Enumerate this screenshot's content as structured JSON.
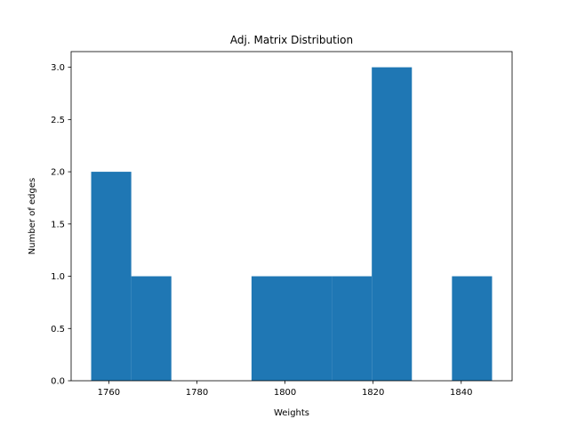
{
  "chart_data": {
    "type": "histogram",
    "title": "Adj. Matrix Distribution",
    "xlabel": "Weights",
    "ylabel": "Number of edges",
    "bins": [
      {
        "x0": 1756.0,
        "x1": 1765.1,
        "count": 2
      },
      {
        "x0": 1765.1,
        "x1": 1774.2,
        "count": 1
      },
      {
        "x0": 1774.2,
        "x1": 1783.3,
        "count": 0
      },
      {
        "x0": 1783.3,
        "x1": 1792.4,
        "count": 0
      },
      {
        "x0": 1792.4,
        "x1": 1801.5,
        "count": 1
      },
      {
        "x0": 1801.5,
        "x1": 1810.6,
        "count": 1
      },
      {
        "x0": 1810.6,
        "x1": 1819.7,
        "count": 1
      },
      {
        "x0": 1819.7,
        "x1": 1828.8,
        "count": 3
      },
      {
        "x0": 1828.8,
        "x1": 1837.9,
        "count": 0
      },
      {
        "x0": 1837.9,
        "x1": 1847.0,
        "count": 1
      }
    ],
    "xlim": [
      1751.45,
      1851.55
    ],
    "ylim": [
      0,
      3.15
    ],
    "xticks": [
      1760,
      1780,
      1800,
      1820,
      1840
    ],
    "xtick_labels": [
      "1760",
      "1780",
      "1800",
      "1820",
      "1840"
    ],
    "yticks": [
      0,
      0.5,
      1,
      1.5,
      2,
      2.5,
      3
    ],
    "ytick_labels": [
      "0.0",
      "0.5",
      "1.0",
      "1.5",
      "2.0",
      "2.5",
      "3.0"
    ],
    "bar_color": "#1f77b4",
    "grid": false,
    "legend": "none"
  }
}
